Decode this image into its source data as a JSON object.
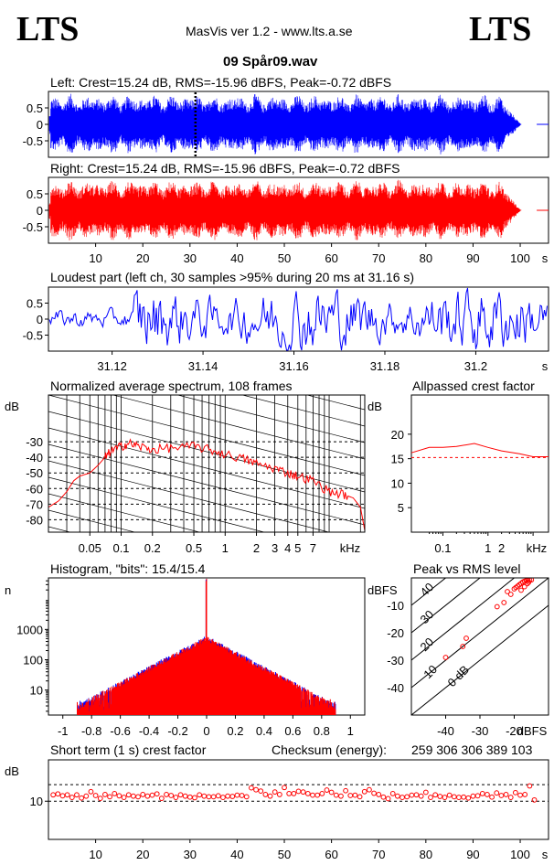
{
  "header": {
    "logo_left": "LTS",
    "logo_right": "LTS",
    "app_title": "MasVis ver 1.2 - www.lts.a.se",
    "file_name": "09 Spår09.wav"
  },
  "colors": {
    "left": "#0000ff",
    "right": "#ff0000",
    "frame": "#000000"
  },
  "chart_data": [
    {
      "type": "line",
      "name": "left-waveform",
      "title": "Left: Crest=15.24 dB, RMS=-15.96 dBFS, Peak=-0.72 dBFS",
      "y_ticks": [
        "0.5",
        "0",
        "-0.5"
      ],
      "y_tick_values": [
        0.5,
        0,
        -0.5
      ],
      "ylim": [
        -1,
        1
      ],
      "xlim": [
        0,
        106
      ],
      "duration_s": 103.5,
      "marker_s": 31.16
    },
    {
      "type": "line",
      "name": "right-waveform",
      "title": "Right: Crest=15.24 dB, RMS=-15.96 dBFS, Peak=-0.72 dBFS",
      "y_ticks": [
        "0.5",
        "0",
        "-0.5"
      ],
      "y_tick_values": [
        0.5,
        0,
        -0.5
      ],
      "ylim": [
        -1,
        1
      ],
      "x_ticks": [
        "10",
        "20",
        "30",
        "40",
        "50",
        "60",
        "70",
        "80",
        "90",
        "100"
      ],
      "x_tick_values": [
        10,
        20,
        30,
        40,
        50,
        60,
        70,
        80,
        90,
        100
      ],
      "x_unit": "s",
      "xlim": [
        0,
        106
      ],
      "duration_s": 103.5
    },
    {
      "type": "line",
      "name": "loudest-part",
      "title": "Loudest part (left  ch, 30 samples >95% during 20 ms at 31.16 s)",
      "y_ticks": [
        "0.5",
        "0",
        "-0.5"
      ],
      "y_tick_values": [
        0.5,
        0,
        -0.5
      ],
      "ylim": [
        -1,
        1
      ],
      "x_ticks": [
        "31.12",
        "31.14",
        "31.16",
        "31.18",
        "31.2"
      ],
      "x_tick_values": [
        31.12,
        31.14,
        31.16,
        31.18,
        31.2
      ],
      "x_unit": "s",
      "xlim": [
        31.106,
        31.216
      ]
    },
    {
      "type": "line",
      "name": "average-spectrum",
      "title": "Normalized average spectrum, 108 frames",
      "ylabel": "dB",
      "y_ticks": [
        "-30",
        "-40",
        "-50",
        "-60",
        "-70",
        "-80"
      ],
      "y_tick_values": [
        -30,
        -40,
        -50,
        -60,
        -70,
        -80
      ],
      "ylim": [
        -88,
        0
      ],
      "x_ticks": [
        "0.05",
        "0.1",
        "0.2",
        "0.5",
        "1",
        "2",
        "3",
        "4",
        "5",
        "7"
      ],
      "x_tick_values": [
        0.05,
        0.1,
        0.2,
        0.5,
        1,
        2,
        3,
        4,
        5,
        7
      ],
      "x_unit": "kHz",
      "xlim": [
        0.02,
        22
      ],
      "x_scale": "log",
      "x": [
        0.02,
        0.025,
        0.03,
        0.035,
        0.04,
        0.05,
        0.06,
        0.07,
        0.08,
        0.1,
        0.12,
        0.15,
        0.2,
        0.3,
        0.5,
        0.7,
        1,
        1.5,
        2,
        3,
        4,
        5,
        7,
        10,
        14,
        17,
        20,
        22
      ],
      "y": [
        -72,
        -68,
        -62,
        -55,
        -52,
        -50,
        -45,
        -40,
        -36,
        -33,
        -31,
        -33,
        -35,
        -34,
        -33,
        -35,
        -38,
        -41,
        -44,
        -47,
        -50,
        -52,
        -55,
        -62,
        -64,
        -66,
        -72,
        -87
      ]
    },
    {
      "type": "line",
      "name": "allpassed-crest",
      "title": "Allpassed crest factor",
      "ylabel": "dB",
      "y_ticks": [
        "20",
        "15",
        "10",
        "5"
      ],
      "y_tick_values": [
        20,
        15,
        10,
        5
      ],
      "ylim": [
        0,
        28
      ],
      "x_ticks": [
        "0.1",
        "1",
        "2",
        "kHz"
      ],
      "x_tick_values": [
        0.1,
        1,
        2
      ],
      "xlim": [
        0.02,
        22
      ],
      "x_scale": "log",
      "reference_db": 15.24,
      "x": [
        0.02,
        0.05,
        0.1,
        0.2,
        0.5,
        1,
        2,
        5,
        10,
        22
      ],
      "y": [
        16.2,
        17.3,
        17.3,
        17.5,
        18.1,
        17.3,
        16.6,
        16.0,
        15.4,
        15.4
      ]
    },
    {
      "type": "bar",
      "name": "histogram",
      "title": "Histogram, \"bits\": 15.4/15.4",
      "ylabel": "n",
      "y_ticks": [
        "1000",
        "100",
        "10"
      ],
      "y_tick_values": [
        1000,
        100,
        10
      ],
      "ylim": [
        1.5,
        50000
      ],
      "y_scale": "log",
      "x_ticks": [
        "-1",
        "-0.8",
        "-0.6",
        "-0.4",
        "-0.2",
        "0",
        "0.2",
        "0.4",
        "0.6",
        "0.8",
        "1"
      ],
      "x_tick_values": [
        -1,
        -0.8,
        -0.6,
        -0.4,
        -0.2,
        0,
        0.2,
        0.4,
        0.6,
        0.8,
        1
      ],
      "xlim": [
        -1.1,
        1.1
      ],
      "peak_count": 40000,
      "center_count": 500,
      "tail_count_at_0_8": 5
    },
    {
      "type": "scatter",
      "name": "peak-vs-rms",
      "title": "Peak vs RMS level",
      "ylabel": "dBFS",
      "xlabel": "dBFS",
      "y_ticks": [
        "-10",
        "-20",
        "-30",
        "-40"
      ],
      "y_tick_values": [
        -10,
        -20,
        -30,
        -40
      ],
      "ylim": [
        -50,
        0
      ],
      "x_ticks": [
        "-40",
        "-30",
        "-20"
      ],
      "x_tick_values": [
        -40,
        -30,
        -20
      ],
      "xlim": [
        -50,
        -10
      ],
      "diagonal_labels": [
        "40",
        "30",
        "20",
        "10",
        "0 dB"
      ],
      "x": [
        -40,
        -35,
        -34,
        -25,
        -23,
        -22,
        -21,
        -20,
        -19.5,
        -19,
        -18.5,
        -18,
        -17.5,
        -17,
        -16.5,
        -16,
        -15.5,
        -15,
        -18,
        -17,
        -16.2,
        -15.8
      ],
      "y": [
        -29,
        -25,
        -22,
        -10.5,
        -9,
        -5,
        -6,
        -4,
        -3.5,
        -3,
        -2.5,
        -2,
        -1.5,
        -1.2,
        -1,
        -0.9,
        -0.8,
        -0.72,
        -4.5,
        -3.2,
        -2.1,
        -1.6
      ]
    },
    {
      "type": "scatter",
      "name": "short-term-crest",
      "title": "Short term (1 s) crest factor",
      "checksum_label": "Checksum (energy):",
      "checksum": "259 306 306 389 103",
      "ylabel": "dB",
      "y_ticks": [
        "10"
      ],
      "y_tick_values": [
        10
      ],
      "ylim": [
        -2,
        23
      ],
      "ref_lines": [
        10,
        15.2
      ],
      "x_ticks": [
        "10",
        "20",
        "30",
        "40",
        "50",
        "60",
        "70",
        "80",
        "90",
        "100"
      ],
      "x_tick_values": [
        10,
        20,
        30,
        40,
        50,
        60,
        70,
        80,
        90,
        100
      ],
      "x_unit": "s",
      "xlim": [
        0,
        106
      ],
      "x": [
        1,
        2,
        3,
        4,
        5,
        6,
        7,
        8,
        9,
        10,
        11,
        12,
        13,
        14,
        15,
        16,
        17,
        18,
        19,
        20,
        21,
        22,
        23,
        24,
        25,
        26,
        27,
        28,
        29,
        30,
        31,
        32,
        33,
        34,
        35,
        36,
        37,
        38,
        39,
        40,
        41,
        42,
        43,
        44,
        45,
        46,
        47,
        48,
        49,
        50,
        51,
        52,
        53,
        54,
        55,
        56,
        57,
        58,
        59,
        60,
        61,
        62,
        63,
        64,
        65,
        66,
        67,
        68,
        69,
        70,
        71,
        72,
        73,
        74,
        75,
        76,
        77,
        78,
        79,
        80,
        81,
        82,
        83,
        84,
        85,
        86,
        87,
        88,
        89,
        90,
        91,
        92,
        93,
        94,
        95,
        96,
        97,
        98,
        99,
        100,
        101,
        102,
        103
      ],
      "y": [
        12,
        12.3,
        11.7,
        12,
        11.2,
        12,
        11,
        11.6,
        13,
        11.8,
        10.9,
        12.1,
        11.4,
        12.4,
        11.7,
        11.2,
        12,
        11.6,
        11.4,
        12.1,
        11.6,
        11.9,
        12.3,
        10.9,
        12.1,
        11.8,
        11.2,
        12,
        11.6,
        11.3,
        11.1,
        12,
        11.6,
        11.4,
        11.4,
        11.7,
        11.2,
        11.6,
        11.5,
        11.9,
        11.8,
        11.4,
        14.2,
        13.6,
        13.2,
        12.1,
        11.6,
        12.9,
        12.1,
        14.3,
        12.4,
        12.4,
        13.1,
        12.9,
        12.4,
        11.9,
        11.9,
        12.4,
        13.5,
        12.8,
        11.9,
        11.6,
        13.3,
        11.8,
        11.9,
        11.4,
        13,
        13.6,
        12.5,
        12.1,
        11.3,
        10.8,
        12.4,
        11.6,
        11.2,
        11.4,
        11.9,
        12,
        11.6,
        12.8,
        11.2,
        12,
        11.5,
        11.2,
        11.9,
        11.4,
        11.2,
        11.3,
        11,
        11.6,
        11.7,
        12.4,
        12.1,
        11.3,
        12.6,
        11.8,
        12.1,
        11.2,
        12.7,
        11.9,
        12.1,
        14.8,
        10.4
      ]
    }
  ]
}
